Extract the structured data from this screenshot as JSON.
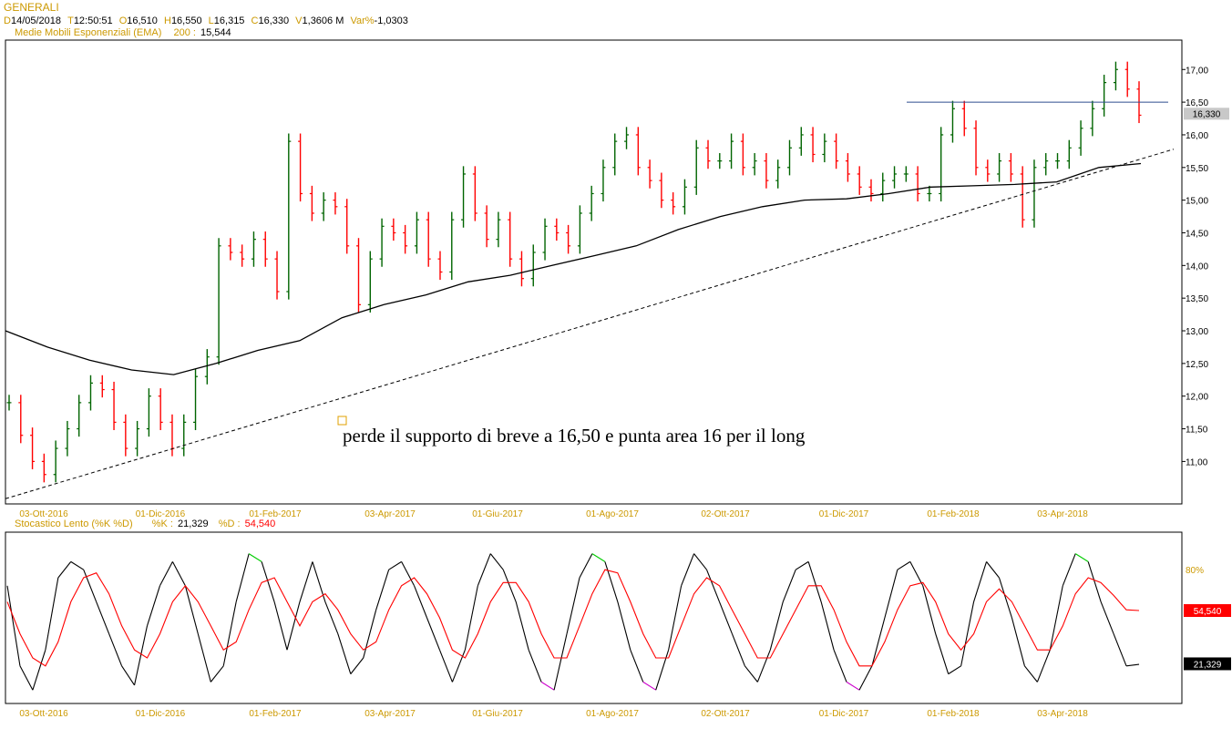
{
  "header": {
    "title": "GENERALI",
    "d_label": "D",
    "d_value": "14/05/2018",
    "t_label": "T",
    "t_value": "12:50:51",
    "o_label": "O",
    "o_value": "16,510",
    "h_label": "H",
    "h_value": "16,550",
    "l_label": "L",
    "l_value": "16,315",
    "c_label": "C",
    "c_value": "16,330",
    "v_label": "V",
    "v_value": "1,3606 M",
    "var_label": "Var%",
    "var_value": "-1,0303",
    "ema_label": "Medie Mobili Esponenziali (EMA)",
    "ema_period": "200 :",
    "ema_value": "15,544"
  },
  "stoch_header": {
    "title": "Stocastico Lento (%K %D)",
    "k_label": "%K :",
    "k_value": "21,329",
    "d_label": "%D :",
    "d_value": "54,540"
  },
  "annotation": "perde il supporto di breve a 16,50 e punta area 16 per il long",
  "colors": {
    "axis_label": "#cc9900",
    "up_candle": "#006400",
    "down_candle": "#ff0000",
    "ema": "#000000",
    "hline": "#2e4d8f",
    "k_line": "#000000",
    "d_line": "#ff0000",
    "overbought": "#00cc00",
    "oversold": "#cc00cc",
    "d_badge": "#ff0000",
    "k_badge": "#000000"
  },
  "chart_data": [
    {
      "type": "candlestick",
      "title": "GENERALI",
      "x_ticks": [
        "03-Ott-2016",
        "01-Dic-2016",
        "01-Feb-2017",
        "03-Apr-2017",
        "01-Giu-2017",
        "01-Ago-2017",
        "02-Ott-2017",
        "01-Dic-2017",
        "01-Feb-2018",
        "03-Apr-2018"
      ],
      "y_ticks": [
        "11,00",
        "11,50",
        "12,00",
        "12,50",
        "13,00",
        "13,50",
        "14,00",
        "14,50",
        "15,00",
        "15,50",
        "16,00",
        "16,50",
        "17,00"
      ],
      "ylim": [
        10.35,
        17.45
      ],
      "last_price_label": "16,330",
      "close_series": [
        11.9,
        11.4,
        11.0,
        10.8,
        11.2,
        11.5,
        11.9,
        12.2,
        12.1,
        11.6,
        11.2,
        11.5,
        12.0,
        11.6,
        11.2,
        11.6,
        12.3,
        12.6,
        14.3,
        14.2,
        14.1,
        14.4,
        14.1,
        13.6,
        15.9,
        15.1,
        14.8,
        15.0,
        14.9,
        14.3,
        13.4,
        14.1,
        14.6,
        14.5,
        14.3,
        14.7,
        14.1,
        13.9,
        14.7,
        15.4,
        14.8,
        14.4,
        14.7,
        14.1,
        13.8,
        14.2,
        14.6,
        14.5,
        14.3,
        14.8,
        15.1,
        15.5,
        15.9,
        16.0,
        15.5,
        15.3,
        15.0,
        14.9,
        15.2,
        15.8,
        15.6,
        15.6,
        15.9,
        15.5,
        15.6,
        15.3,
        15.5,
        15.8,
        16.0,
        15.7,
        15.9,
        15.6,
        15.4,
        15.2,
        15.1,
        15.3,
        15.4,
        15.4,
        15.1,
        15.1,
        16.0,
        16.4,
        16.1,
        15.5,
        15.4,
        15.6,
        15.4,
        14.7,
        15.5,
        15.6,
        15.6,
        15.8,
        16.1,
        16.4,
        16.8,
        17.0,
        16.7,
        16.3
      ],
      "ema200_series": [
        13.0,
        12.75,
        12.55,
        12.4,
        12.33,
        12.5,
        12.7,
        12.85,
        13.2,
        13.4,
        13.55,
        13.75,
        13.85,
        14.0,
        14.15,
        14.3,
        14.55,
        14.75,
        14.9,
        15.0,
        15.02,
        15.1,
        15.2,
        15.22,
        15.24,
        15.28,
        15.5,
        15.56
      ],
      "resistance_line_value": 16.5,
      "trendline": {
        "from": [
          "Set-2016",
          10.43
        ],
        "to": [
          "Mag-2018",
          15.78
        ]
      }
    },
    {
      "type": "line",
      "title": "Stocastico Lento (%K %D)",
      "y_ticks": [
        "80%"
      ],
      "ylim": [
        0,
        100
      ],
      "series": [
        {
          "name": "%K",
          "values": [
            70,
            20,
            5,
            30,
            75,
            85,
            80,
            60,
            40,
            20,
            8,
            45,
            70,
            85,
            70,
            40,
            10,
            20,
            60,
            90,
            85,
            60,
            30,
            60,
            85,
            60,
            40,
            15,
            25,
            55,
            80,
            85,
            70,
            50,
            30,
            10,
            30,
            70,
            90,
            80,
            60,
            30,
            10,
            5,
            40,
            75,
            90,
            85,
            60,
            30,
            10,
            5,
            30,
            70,
            90,
            80,
            60,
            40,
            20,
            10,
            30,
            60,
            80,
            85,
            60,
            30,
            10,
            5,
            20,
            50,
            80,
            85,
            70,
            40,
            15,
            20,
            60,
            85,
            75,
            50,
            20,
            10,
            30,
            70,
            90,
            85,
            60,
            40,
            20,
            21
          ]
        },
        {
          "name": "%D",
          "values": [
            60,
            40,
            25,
            20,
            35,
            60,
            75,
            78,
            65,
            45,
            30,
            25,
            40,
            60,
            70,
            60,
            45,
            30,
            35,
            55,
            72,
            75,
            60,
            45,
            60,
            65,
            55,
            40,
            30,
            35,
            55,
            70,
            75,
            65,
            50,
            30,
            25,
            40,
            60,
            72,
            72,
            60,
            40,
            25,
            25,
            45,
            65,
            80,
            78,
            60,
            40,
            25,
            25,
            45,
            65,
            75,
            70,
            55,
            40,
            25,
            25,
            40,
            55,
            70,
            70,
            55,
            35,
            20,
            20,
            35,
            55,
            70,
            72,
            60,
            40,
            30,
            40,
            60,
            68,
            60,
            45,
            30,
            30,
            45,
            65,
            75,
            72,
            64,
            55,
            54.54
          ]
        }
      ],
      "k_last_label": "21,329",
      "d_last_label": "54,540"
    }
  ]
}
